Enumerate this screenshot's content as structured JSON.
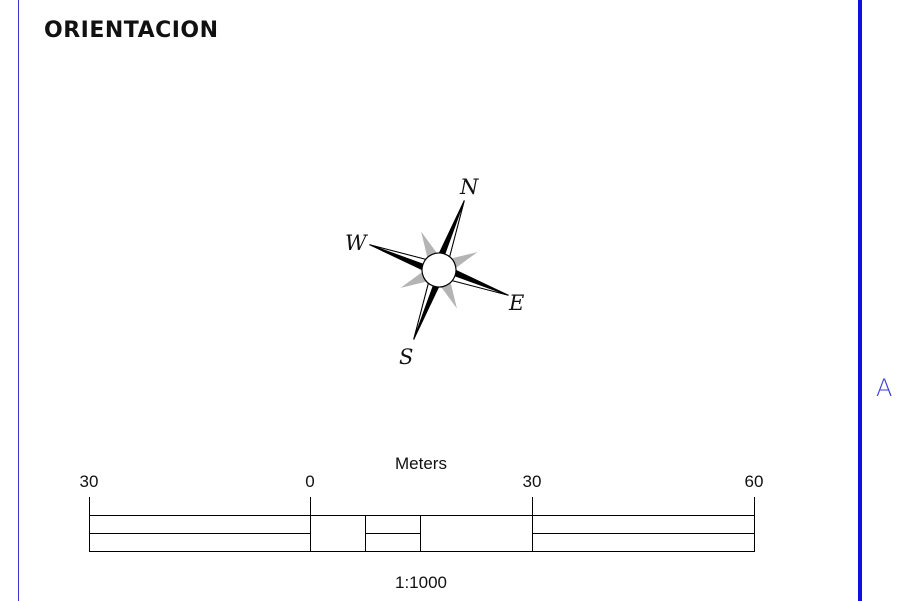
{
  "title": "ORIENTACION",
  "side_letter": "A",
  "compass": {
    "north": "N",
    "south": "S",
    "east": "E",
    "west": "W"
  },
  "scale_bar": {
    "units_label": "Meters",
    "tick_labels": [
      "30",
      "0",
      "30",
      "60"
    ],
    "ratio": "1:1000"
  },
  "colors": {
    "frame": "#1010e0",
    "side_letter": "#3c3cd8",
    "primary_points": "#000000",
    "secondary_points": "#b4b4b4"
  }
}
